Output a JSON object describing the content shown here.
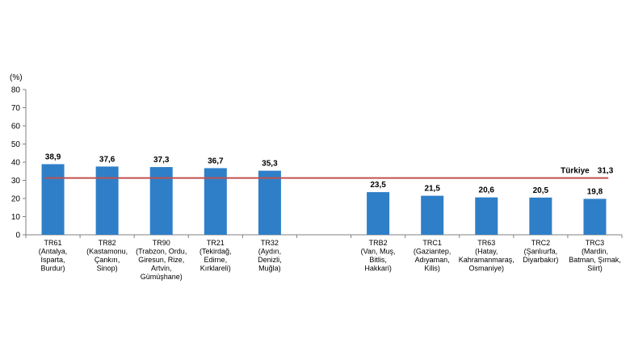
{
  "chart_data": {
    "type": "bar",
    "ylabel": "(%)",
    "ylim": [
      0,
      80
    ],
    "yticks": [
      0,
      10,
      20,
      30,
      40,
      50,
      60,
      70,
      80
    ],
    "bar_color": "#2e7fc8",
    "line_color": "#c0504d",
    "grid": false,
    "categories": [
      [
        "TR61",
        "(Antalya,",
        "Isparta,",
        "Burdur)"
      ],
      [
        "TR82",
        "(Kastamonu,",
        "Çankırı,",
        "Sinop)"
      ],
      [
        "TR90",
        "(Trabzon, Ordu,",
        "Giresun, Rize,",
        "Artvin,",
        "Gümüşhane)"
      ],
      [
        "TR21",
        "(Tekirdağ,",
        "Edirne,",
        "Kırklareli)"
      ],
      [
        "TR32",
        "(Aydın,",
        "Denizli,",
        "Muğla)"
      ],
      [],
      [
        "TRB2",
        "(Van, Muş,",
        "Bitlis,",
        "Hakkari)"
      ],
      [
        "TRC1",
        "(Gaziantep,",
        "Adıyaman,",
        "Kilis)"
      ],
      [
        "TR63",
        "(Hatay,",
        "Kahramanmaraş,",
        "Osmaniye)"
      ],
      [
        "TRC2",
        "(Şanlıurfa,",
        "Diyarbakır)"
      ],
      [
        "TRC3",
        "(Mardin,",
        "Batman, Şırnak,",
        "Siirt)"
      ]
    ],
    "values": [
      38.9,
      37.6,
      37.3,
      36.7,
      35.3,
      null,
      23.5,
      21.5,
      20.6,
      20.5,
      19.8
    ],
    "value_labels": [
      "38,9",
      "37,6",
      "37,3",
      "36,7",
      "35,3",
      "",
      "23,5",
      "21,5",
      "20,6",
      "20,5",
      "19,8"
    ],
    "reference_line": {
      "name": "Türkiye",
      "value": 31.3,
      "value_label": "31,3"
    }
  }
}
